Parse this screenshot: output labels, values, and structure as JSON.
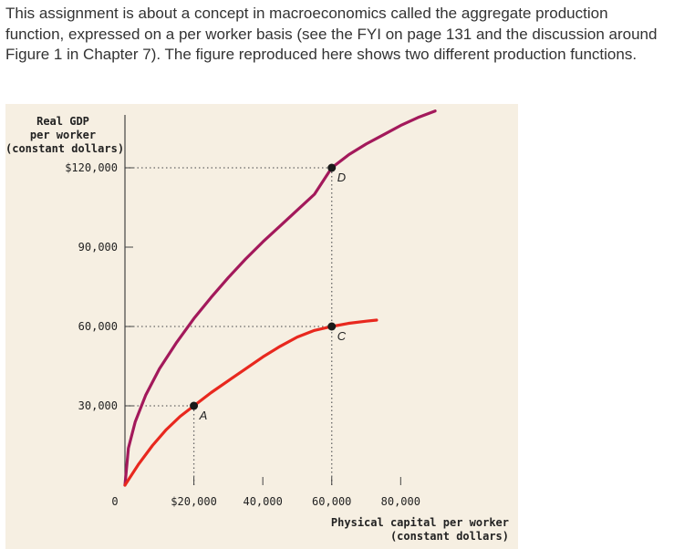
{
  "intro_text": "This assignment is about a concept in macroeconomics called the aggregate production function, expressed on a per worker basis (see the FYI on page 131 and the discussion around Figure 1 in Chapter 7). The figure reproduced here shows two different production functions.",
  "chart_data": {
    "type": "line",
    "ylabel": [
      "Real GDP",
      "per worker",
      "(constant dollars)"
    ],
    "xlabel": [
      "Physical capital per worker",
      "(constant dollars)"
    ],
    "x_ticks": [
      {
        "value": 0,
        "label": "0"
      },
      {
        "value": 20000,
        "label": "$20,000"
      },
      {
        "value": 40000,
        "label": "40,000"
      },
      {
        "value": 60000,
        "label": "60,000"
      },
      {
        "value": 80000,
        "label": "80,000"
      }
    ],
    "y_ticks": [
      {
        "value": 30000,
        "label": "30,000"
      },
      {
        "value": 60000,
        "label": "60,000"
      },
      {
        "value": 90000,
        "label": "90,000"
      },
      {
        "value": 120000,
        "label": "$120,000"
      }
    ],
    "xlim": [
      0,
      95000
    ],
    "ylim": [
      0,
      140000
    ],
    "series": [
      {
        "color": "#a3195b",
        "x": [
          0,
          1000,
          3000,
          6000,
          10000,
          15000,
          20000,
          25000,
          30000,
          35000,
          40000,
          45000,
          50000,
          55000,
          60000,
          65000,
          70000,
          75000,
          80000,
          85000,
          90000
        ],
        "y": [
          0,
          14000,
          24000,
          34000,
          44000,
          54000,
          63000,
          71000,
          78500,
          85500,
          92000,
          98000,
          104000,
          110000,
          120000,
          125000,
          129000,
          132500,
          136000,
          139000,
          141500
        ]
      },
      {
        "color": "#e8281e",
        "x": [
          0,
          4000,
          8000,
          12000,
          16000,
          20000,
          25000,
          30000,
          35000,
          40000,
          45000,
          50000,
          55000,
          60000,
          65000,
          70000,
          73000
        ],
        "y": [
          0,
          8000,
          15000,
          21000,
          26000,
          30000,
          35000,
          39500,
          44000,
          48500,
          52500,
          56000,
          58500,
          60000,
          61200,
          62000,
          62400
        ]
      }
    ],
    "points": [
      {
        "label": "A",
        "x": 20000,
        "y": 30000
      },
      {
        "label": "C",
        "x": 60000,
        "y": 60000
      },
      {
        "label": "D",
        "x": 60000,
        "y": 120000
      }
    ],
    "guides": [
      {
        "axis": "h",
        "y": 120000,
        "from_x": 0,
        "to_x": 60000
      },
      {
        "axis": "h",
        "y": 60000,
        "from_x": 0,
        "to_x": 60000
      },
      {
        "axis": "h",
        "y": 30000,
        "from_x": 0,
        "to_x": 20000
      },
      {
        "axis": "v",
        "x": 60000,
        "from_y": 0,
        "to_y": 120000
      },
      {
        "axis": "v",
        "x": 20000,
        "from_y": 0,
        "to_y": 30000
      }
    ]
  }
}
